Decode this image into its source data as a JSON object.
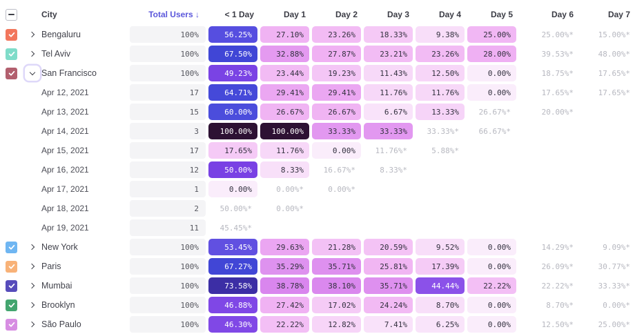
{
  "header": {
    "select_all_state": "indeterminate",
    "city_label": "City",
    "total_users_label": "Total Users",
    "sort_indicator": "↓",
    "day_columns": [
      "< 1 Day",
      "Day 1",
      "Day 2",
      "Day 3",
      "Day 4",
      "Day 5",
      "Day 6",
      "Day 7"
    ]
  },
  "colors": {
    "ghost_text": "#B7B8C0",
    "total_cell_bg": "#F4F4F6",
    "sorted_header": "#5B57DB",
    "focus_ring": "#DED8F9"
  },
  "rows": [
    {
      "type": "city",
      "label": "Bengaluru",
      "checkbox": "#F2765C",
      "expander": "collapsed",
      "total": "100%",
      "cells": [
        {
          "t": "56.25%",
          "bg": "#564EE0",
          "w": 1
        },
        {
          "t": "27.10%",
          "bg": "#F0B3F3"
        },
        {
          "t": "23.26%",
          "bg": "#F2BBF4"
        },
        {
          "t": "18.33%",
          "bg": "#F5C9F6"
        },
        {
          "t": "9.38%",
          "bg": "#F8DEF9"
        },
        {
          "t": "25.00%",
          "bg": "#F1B7F4"
        },
        {
          "t": "25.00%*",
          "g": 1
        },
        {
          "t": "15.00%*",
          "g": 1
        }
      ]
    },
    {
      "type": "city",
      "label": "Tel Aviv",
      "checkbox": "#7FDCC9",
      "expander": "collapsed",
      "total": "100%",
      "cells": [
        {
          "t": "67.50%",
          "bg": "#4046D6",
          "w": 1
        },
        {
          "t": "32.88%",
          "bg": "#E49AF0"
        },
        {
          "t": "27.87%",
          "bg": "#F0B1F3"
        },
        {
          "t": "23.21%",
          "bg": "#F2BCF4"
        },
        {
          "t": "23.26%",
          "bg": "#F2BBF4"
        },
        {
          "t": "28.00%",
          "bg": "#EFB0F3"
        },
        {
          "t": "39.53%*",
          "g": 1
        },
        {
          "t": "48.00%*",
          "g": 1
        }
      ]
    },
    {
      "type": "city",
      "label": "San Francisco",
      "checkbox": "#B25F6E",
      "expander": "expanded",
      "total": "100%",
      "cells": [
        {
          "t": "49.23%",
          "bg": "#7A43E4",
          "w": 1
        },
        {
          "t": "23.44%",
          "bg": "#F2BBF4"
        },
        {
          "t": "19.23%",
          "bg": "#F4C6F6"
        },
        {
          "t": "11.43%",
          "bg": "#F7D9F8"
        },
        {
          "t": "12.50%",
          "bg": "#F7D6F8"
        },
        {
          "t": "0.00%",
          "bg": "#FAEDFB"
        },
        {
          "t": "18.75%*",
          "g": 1
        },
        {
          "t": "17.65%*",
          "g": 1
        }
      ]
    },
    {
      "type": "date",
      "label": "Apr 12, 2021",
      "total": "17",
      "cells": [
        {
          "t": "64.71%",
          "bg": "#4549D9",
          "w": 1
        },
        {
          "t": "29.41%",
          "bg": "#EBA7F2"
        },
        {
          "t": "29.41%",
          "bg": "#EBA7F2"
        },
        {
          "t": "11.76%",
          "bg": "#F7D8F8"
        },
        {
          "t": "11.76%",
          "bg": "#F7D8F8"
        },
        {
          "t": "0.00%",
          "bg": "#FAEDFB"
        },
        {
          "t": "17.65%*",
          "g": 1
        },
        {
          "t": "17.65%*",
          "g": 1
        }
      ]
    },
    {
      "type": "date",
      "label": "Apr 13, 2021",
      "total": "15",
      "cells": [
        {
          "t": "60.00%",
          "bg": "#4B4DDC",
          "w": 1
        },
        {
          "t": "26.67%",
          "bg": "#F0B4F3"
        },
        {
          "t": "26.67%",
          "bg": "#F0B4F3"
        },
        {
          "t": "6.67%",
          "bg": "#F9E3FA"
        },
        {
          "t": "13.33%",
          "bg": "#F6D4F8"
        },
        {
          "t": "26.67%*",
          "g": 1
        },
        {
          "t": "20.00%*",
          "g": 1
        },
        null
      ]
    },
    {
      "type": "date",
      "label": "Apr 14, 2021",
      "total": "3",
      "cells": [
        {
          "t": "100.00%",
          "bg": "#2D1133",
          "w": 1
        },
        {
          "t": "100.00%",
          "bg": "#2D1133",
          "w": 1
        },
        {
          "t": "33.33%",
          "bg": "#E298F0"
        },
        {
          "t": "33.33%",
          "bg": "#E298F0"
        },
        {
          "t": "33.33%*",
          "g": 1
        },
        {
          "t": "66.67%*",
          "g": 1
        },
        null,
        null
      ]
    },
    {
      "type": "date",
      "label": "Apr 15, 2021",
      "total": "17",
      "cells": [
        {
          "t": "17.65%",
          "bg": "#F5CAF6"
        },
        {
          "t": "11.76%",
          "bg": "#F7D8F8"
        },
        {
          "t": "0.00%",
          "bg": "#FAEDFB"
        },
        {
          "t": "11.76%*",
          "g": 1
        },
        {
          "t": "5.88%*",
          "g": 1
        },
        null,
        null,
        null
      ]
    },
    {
      "type": "date",
      "label": "Apr 16, 2021",
      "total": "12",
      "cells": [
        {
          "t": "50.00%",
          "bg": "#7941E4",
          "w": 1
        },
        {
          "t": "8.33%",
          "bg": "#F8E0F9"
        },
        {
          "t": "16.67%*",
          "g": 1
        },
        {
          "t": "8.33%*",
          "g": 1
        },
        null,
        null,
        null,
        null
      ]
    },
    {
      "type": "date",
      "label": "Apr 17, 2021",
      "total": "1",
      "cells": [
        {
          "t": "0.00%",
          "bg": "#FAEDFB"
        },
        {
          "t": "0.00%*",
          "g": 1
        },
        {
          "t": "0.00%*",
          "g": 1
        },
        null,
        null,
        null,
        null,
        null
      ]
    },
    {
      "type": "date",
      "label": "Apr 18, 2021",
      "total": "2",
      "cells": [
        {
          "t": "50.00%*",
          "g": 1
        },
        {
          "t": "0.00%*",
          "g": 1
        },
        null,
        null,
        null,
        null,
        null,
        null
      ]
    },
    {
      "type": "date",
      "label": "Apr 19, 2021",
      "total": "11",
      "cells": [
        {
          "t": "45.45%*",
          "g": 1
        },
        null,
        null,
        null,
        null,
        null,
        null,
        null
      ]
    },
    {
      "type": "city",
      "label": "New York",
      "checkbox": "#6FB6F2",
      "expander": "collapsed",
      "total": "100%",
      "cells": [
        {
          "t": "53.45%",
          "bg": "#6150E1",
          "w": 1
        },
        {
          "t": "29.63%",
          "bg": "#EBA6F2"
        },
        {
          "t": "21.28%",
          "bg": "#F3C1F5"
        },
        {
          "t": "20.59%",
          "bg": "#F4C3F5"
        },
        {
          "t": "9.52%",
          "bg": "#F8DEF9"
        },
        {
          "t": "0.00%",
          "bg": "#FAEDFB"
        },
        {
          "t": "14.29%*",
          "g": 1
        },
        {
          "t": "9.09%*",
          "g": 1
        }
      ]
    },
    {
      "type": "city",
      "label": "Paris",
      "checkbox": "#F8B278",
      "expander": "collapsed",
      "total": "100%",
      "cells": [
        {
          "t": "67.27%",
          "bg": "#4146D6",
          "w": 1
        },
        {
          "t": "35.29%",
          "bg": "#DE92EF"
        },
        {
          "t": "35.71%",
          "bg": "#DE90EF"
        },
        {
          "t": "25.81%",
          "bg": "#F1B6F3"
        },
        {
          "t": "17.39%",
          "bg": "#F5CBF6"
        },
        {
          "t": "0.00%",
          "bg": "#FAEDFB"
        },
        {
          "t": "26.09%*",
          "g": 1
        },
        {
          "t": "30.77%*",
          "g": 1
        }
      ]
    },
    {
      "type": "city",
      "label": "Mumbai",
      "checkbox": "#574CBB",
      "expander": "collapsed",
      "total": "100%",
      "cells": [
        {
          "t": "73.58%",
          "bg": "#3C2EA5",
          "w": 1
        },
        {
          "t": "38.78%",
          "bg": "#D986EE"
        },
        {
          "t": "38.10%",
          "bg": "#DA88EE"
        },
        {
          "t": "35.71%",
          "bg": "#DE90EF"
        },
        {
          "t": "44.44%",
          "bg": "#8B51E9",
          "w": 1
        },
        {
          "t": "22.22%",
          "bg": "#F3BFF5"
        },
        {
          "t": "22.22%*",
          "g": 1
        },
        {
          "t": "33.33%*",
          "g": 1
        }
      ]
    },
    {
      "type": "city",
      "label": "Brooklyn",
      "checkbox": "#43A56F",
      "expander": "collapsed",
      "total": "100%",
      "cells": [
        {
          "t": "46.88%",
          "bg": "#7F47E6",
          "w": 1
        },
        {
          "t": "27.42%",
          "bg": "#F0B2F3"
        },
        {
          "t": "17.02%",
          "bg": "#F5CBF6"
        },
        {
          "t": "24.24%",
          "bg": "#F2BAF4"
        },
        {
          "t": "8.70%",
          "bg": "#F8DFF9"
        },
        {
          "t": "0.00%",
          "bg": "#FAEDFB"
        },
        {
          "t": "8.70%*",
          "g": 1
        },
        {
          "t": "0.00%*",
          "g": 1
        }
      ]
    },
    {
      "type": "city",
      "label": "São Paulo",
      "checkbox": "#D78DE2",
      "expander": "collapsed",
      "total": "100%",
      "cells": [
        {
          "t": "46.30%",
          "bg": "#8048E6",
          "w": 1
        },
        {
          "t": "22.22%",
          "bg": "#F3BFF5"
        },
        {
          "t": "12.82%",
          "bg": "#F7D5F8"
        },
        {
          "t": "7.41%",
          "bg": "#F9E2FA"
        },
        {
          "t": "6.25%",
          "bg": "#F9E4FA"
        },
        {
          "t": "0.00%",
          "bg": "#FAEDFB"
        },
        {
          "t": "12.50%*",
          "g": 1
        },
        {
          "t": "25.00%*",
          "g": 1
        }
      ]
    }
  ]
}
